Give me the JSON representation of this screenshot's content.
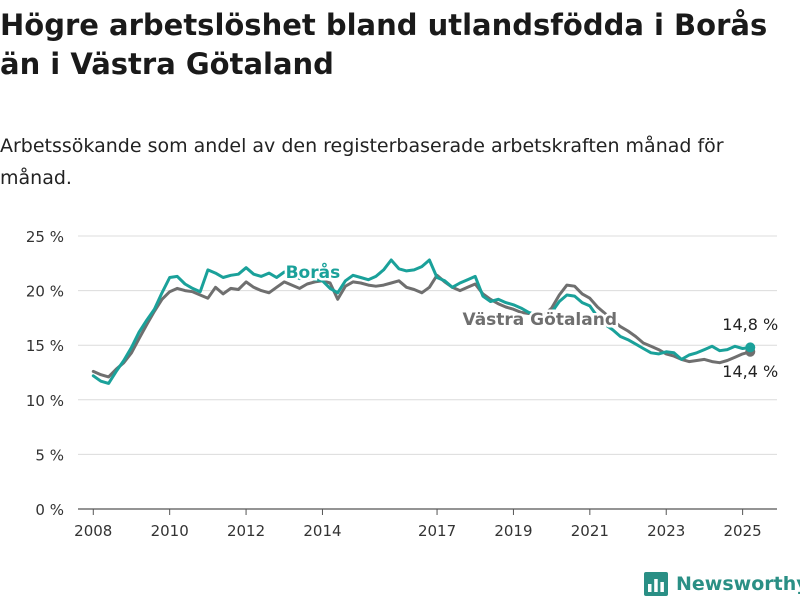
{
  "title": "Högre arbetslöshet bland utlandsfödda i Borås än i Västra Götaland",
  "subtitle": "Arbetssökande som andel av den registerbaserade arbetskraften månad för månad.",
  "brand": {
    "name": "Newsworthy",
    "color": "#2a8f85"
  },
  "chart_data": {
    "type": "line",
    "ylim": [
      0,
      25
    ],
    "y_ticks": [
      0,
      5,
      10,
      15,
      20,
      25
    ],
    "y_tick_labels": [
      "0 %",
      "5 %",
      "10 %",
      "15 %",
      "20 %",
      "25 %"
    ],
    "x_ticks": [
      2008,
      2010,
      2012,
      2014,
      2017,
      2019,
      2021,
      2023,
      2025
    ],
    "x_tick_labels": [
      "2008",
      "2010",
      "2012",
      "2014",
      "2017",
      "2019",
      "2021",
      "2023",
      "2025"
    ],
    "grid": true,
    "series": [
      {
        "name": "Västra Götaland",
        "color": "#6f6f6f",
        "end_label": "14,4 %",
        "points": [
          [
            2008.0,
            12.6
          ],
          [
            2008.2,
            12.3
          ],
          [
            2008.4,
            12.1
          ],
          [
            2008.6,
            12.8
          ],
          [
            2008.8,
            13.4
          ],
          [
            2009.0,
            14.3
          ],
          [
            2009.2,
            15.6
          ],
          [
            2009.4,
            16.9
          ],
          [
            2009.6,
            18.1
          ],
          [
            2009.8,
            19.2
          ],
          [
            2010.0,
            19.9
          ],
          [
            2010.2,
            20.2
          ],
          [
            2010.4,
            20.0
          ],
          [
            2010.6,
            19.9
          ],
          [
            2010.8,
            19.6
          ],
          [
            2011.0,
            19.3
          ],
          [
            2011.2,
            20.3
          ],
          [
            2011.4,
            19.7
          ],
          [
            2011.6,
            20.2
          ],
          [
            2011.8,
            20.1
          ],
          [
            2012.0,
            20.8
          ],
          [
            2012.2,
            20.3
          ],
          [
            2012.4,
            20.0
          ],
          [
            2012.6,
            19.8
          ],
          [
            2012.8,
            20.3
          ],
          [
            2013.0,
            20.8
          ],
          [
            2013.2,
            20.5
          ],
          [
            2013.4,
            20.2
          ],
          [
            2013.6,
            20.6
          ],
          [
            2013.8,
            20.8
          ],
          [
            2014.0,
            20.9
          ],
          [
            2014.2,
            20.7
          ],
          [
            2014.4,
            19.2
          ],
          [
            2014.6,
            20.4
          ],
          [
            2014.8,
            20.8
          ],
          [
            2015.0,
            20.7
          ],
          [
            2015.2,
            20.5
          ],
          [
            2015.4,
            20.4
          ],
          [
            2015.6,
            20.5
          ],
          [
            2015.8,
            20.7
          ],
          [
            2016.0,
            20.9
          ],
          [
            2016.2,
            20.3
          ],
          [
            2016.4,
            20.1
          ],
          [
            2016.6,
            19.8
          ],
          [
            2016.8,
            20.3
          ],
          [
            2017.0,
            21.4
          ],
          [
            2017.2,
            20.8
          ],
          [
            2017.4,
            20.3
          ],
          [
            2017.6,
            20.0
          ],
          [
            2017.8,
            20.3
          ],
          [
            2018.0,
            20.6
          ],
          [
            2018.2,
            19.7
          ],
          [
            2018.4,
            19.2
          ],
          [
            2018.6,
            18.8
          ],
          [
            2018.8,
            18.5
          ],
          [
            2019.0,
            18.3
          ],
          [
            2019.2,
            18.0
          ],
          [
            2019.4,
            17.9
          ],
          [
            2019.6,
            17.9
          ],
          [
            2019.8,
            17.8
          ],
          [
            2020.0,
            18.4
          ],
          [
            2020.2,
            19.6
          ],
          [
            2020.4,
            20.5
          ],
          [
            2020.6,
            20.4
          ],
          [
            2020.8,
            19.7
          ],
          [
            2021.0,
            19.3
          ],
          [
            2021.2,
            18.5
          ],
          [
            2021.4,
            17.9
          ],
          [
            2021.6,
            17.3
          ],
          [
            2021.8,
            16.7
          ],
          [
            2022.0,
            16.3
          ],
          [
            2022.2,
            15.8
          ],
          [
            2022.4,
            15.2
          ],
          [
            2022.6,
            14.9
          ],
          [
            2022.8,
            14.6
          ],
          [
            2023.0,
            14.2
          ],
          [
            2023.2,
            14.0
          ],
          [
            2023.4,
            13.7
          ],
          [
            2023.6,
            13.5
          ],
          [
            2023.8,
            13.6
          ],
          [
            2024.0,
            13.7
          ],
          [
            2024.2,
            13.5
          ],
          [
            2024.4,
            13.4
          ],
          [
            2024.6,
            13.6
          ],
          [
            2024.8,
            13.9
          ],
          [
            2025.0,
            14.2
          ],
          [
            2025.2,
            14.4
          ]
        ]
      },
      {
        "name": "Borås",
        "color": "#1aa19a",
        "end_label": "14,8 %",
        "points": [
          [
            2008.0,
            12.2
          ],
          [
            2008.2,
            11.7
          ],
          [
            2008.4,
            11.5
          ],
          [
            2008.6,
            12.6
          ],
          [
            2008.8,
            13.6
          ],
          [
            2009.0,
            14.8
          ],
          [
            2009.2,
            16.2
          ],
          [
            2009.4,
            17.3
          ],
          [
            2009.6,
            18.3
          ],
          [
            2009.8,
            19.8
          ],
          [
            2010.0,
            21.2
          ],
          [
            2010.2,
            21.3
          ],
          [
            2010.4,
            20.6
          ],
          [
            2010.6,
            20.2
          ],
          [
            2010.8,
            19.9
          ],
          [
            2011.0,
            21.9
          ],
          [
            2011.2,
            21.6
          ],
          [
            2011.4,
            21.2
          ],
          [
            2011.6,
            21.4
          ],
          [
            2011.8,
            21.5
          ],
          [
            2012.0,
            22.1
          ],
          [
            2012.2,
            21.5
          ],
          [
            2012.4,
            21.3
          ],
          [
            2012.6,
            21.6
          ],
          [
            2012.8,
            21.2
          ],
          [
            2013.0,
            21.7
          ],
          [
            2013.2,
            21.5
          ],
          [
            2013.4,
            21.1
          ],
          [
            2013.6,
            21.2
          ],
          [
            2013.8,
            21.0
          ],
          [
            2014.0,
            20.9
          ],
          [
            2014.2,
            20.2
          ],
          [
            2014.4,
            19.8
          ],
          [
            2014.6,
            20.9
          ],
          [
            2014.8,
            21.4
          ],
          [
            2015.0,
            21.2
          ],
          [
            2015.2,
            21.0
          ],
          [
            2015.4,
            21.3
          ],
          [
            2015.6,
            21.9
          ],
          [
            2015.8,
            22.8
          ],
          [
            2016.0,
            22.0
          ],
          [
            2016.2,
            21.8
          ],
          [
            2016.4,
            21.9
          ],
          [
            2016.6,
            22.2
          ],
          [
            2016.8,
            22.8
          ],
          [
            2017.0,
            21.2
          ],
          [
            2017.2,
            20.9
          ],
          [
            2017.4,
            20.3
          ],
          [
            2017.6,
            20.7
          ],
          [
            2017.8,
            21.0
          ],
          [
            2018.0,
            21.3
          ],
          [
            2018.2,
            19.5
          ],
          [
            2018.4,
            19.0
          ],
          [
            2018.6,
            19.2
          ],
          [
            2018.8,
            18.9
          ],
          [
            2019.0,
            18.7
          ],
          [
            2019.2,
            18.4
          ],
          [
            2019.4,
            18.0
          ],
          [
            2019.6,
            17.8
          ],
          [
            2019.8,
            17.6
          ],
          [
            2020.0,
            18.0
          ],
          [
            2020.2,
            19.0
          ],
          [
            2020.4,
            19.6
          ],
          [
            2020.6,
            19.5
          ],
          [
            2020.8,
            18.9
          ],
          [
            2021.0,
            18.6
          ],
          [
            2021.2,
            17.6
          ],
          [
            2021.4,
            16.9
          ],
          [
            2021.6,
            16.4
          ],
          [
            2021.8,
            15.8
          ],
          [
            2022.0,
            15.5
          ],
          [
            2022.2,
            15.1
          ],
          [
            2022.4,
            14.7
          ],
          [
            2022.6,
            14.3
          ],
          [
            2022.8,
            14.2
          ],
          [
            2023.0,
            14.4
          ],
          [
            2023.2,
            14.3
          ],
          [
            2023.4,
            13.7
          ],
          [
            2023.6,
            14.1
          ],
          [
            2023.8,
            14.3
          ],
          [
            2024.0,
            14.6
          ],
          [
            2024.2,
            14.9
          ],
          [
            2024.4,
            14.5
          ],
          [
            2024.6,
            14.6
          ],
          [
            2024.8,
            14.9
          ],
          [
            2025.0,
            14.7
          ],
          [
            2025.2,
            14.8
          ]
        ]
      }
    ]
  }
}
